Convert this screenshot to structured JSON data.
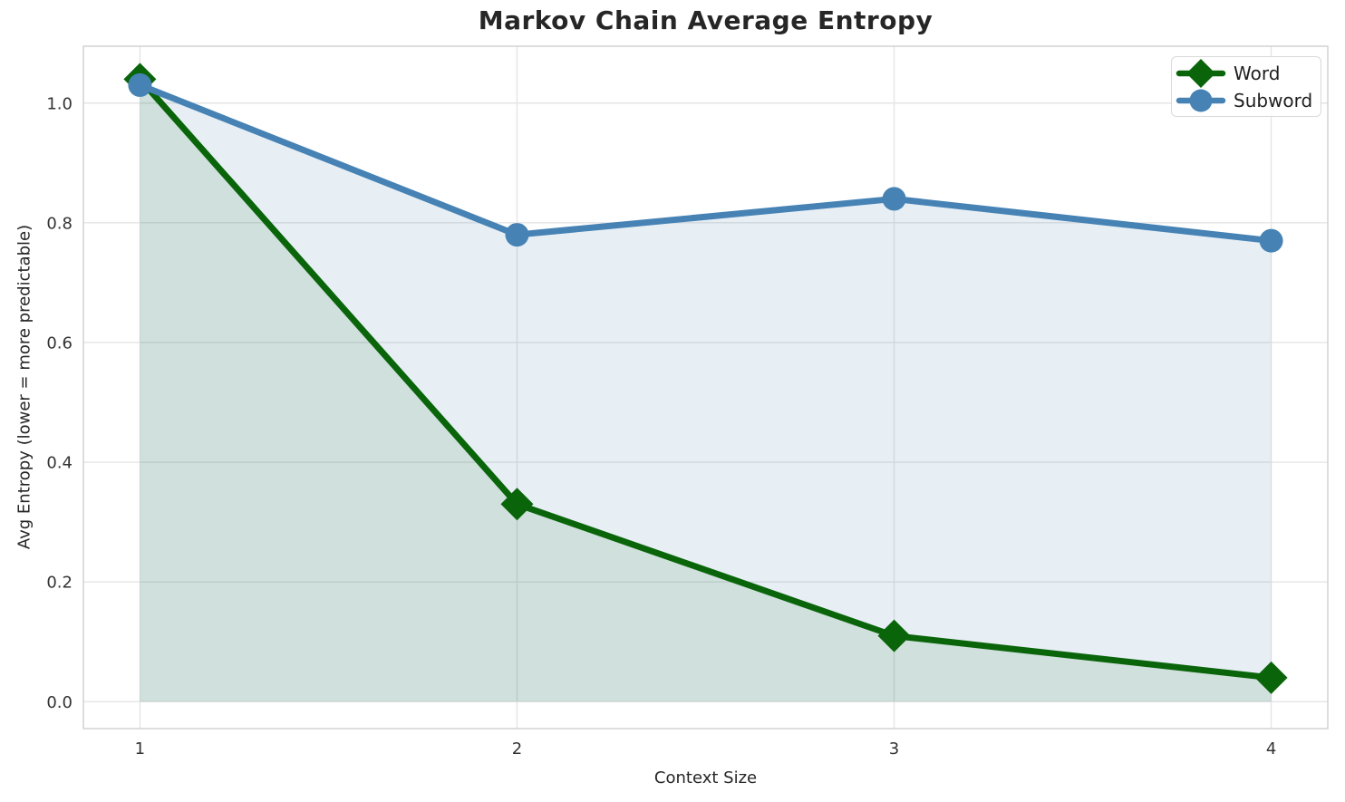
{
  "chart_data": {
    "type": "line",
    "title": "Markov Chain Average Entropy",
    "xlabel": "Context Size",
    "ylabel": "Avg Entropy (lower = more predictable)",
    "x": [
      1,
      2,
      3,
      4
    ],
    "series": [
      {
        "name": "Word",
        "color": "#0a650a",
        "marker": "diamond",
        "fill_alpha": 0.1,
        "values": [
          1.04,
          0.33,
          0.11,
          0.04
        ]
      },
      {
        "name": "Subword",
        "color": "#4682b4",
        "marker": "circle",
        "fill_alpha": 0.13,
        "values": [
          1.03,
          0.78,
          0.84,
          0.77
        ]
      }
    ],
    "xlim": [
      0.85,
      4.15
    ],
    "ylim": [
      -0.045,
      1.095
    ],
    "xtick_labels": [
      "1",
      "2",
      "3",
      "4"
    ],
    "xtick_values": [
      1,
      2,
      3,
      4
    ],
    "ytick_labels": [
      "0.0",
      "0.2",
      "0.4",
      "0.6",
      "0.8",
      "1.0"
    ],
    "ytick_values": [
      0.0,
      0.2,
      0.4,
      0.6,
      0.8,
      1.0
    ],
    "grid": true,
    "area_fill_baseline": 0,
    "legend_position": "upper right"
  },
  "style": {
    "background_color": "#ffffff",
    "grid_color": "#e5e5e5",
    "spine_color": "#d2d2d2",
    "title_color": "#262626",
    "tick_color": "#333333",
    "legend_text_color": "#1f1f1f"
  }
}
